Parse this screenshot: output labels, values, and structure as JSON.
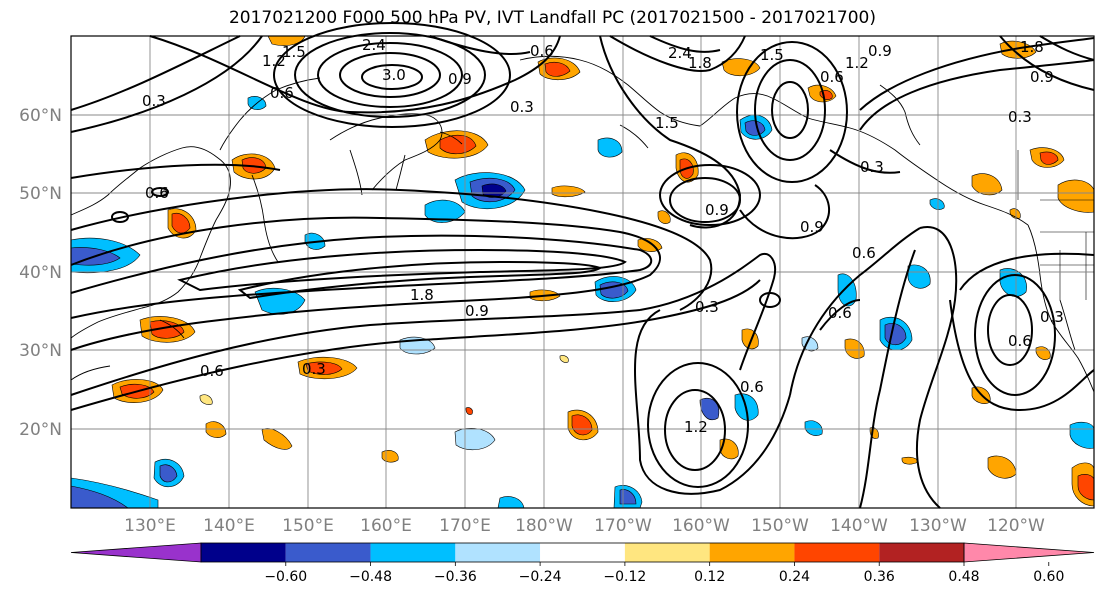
{
  "title": "2017021200 F000 500 hPa PV, IVT Landfall PC (2017021500 - 2017021700)",
  "map": {
    "lat_labels": [
      "60°N",
      "50°N",
      "40°N",
      "30°N",
      "20°N"
    ],
    "lon_labels": [
      "130°E",
      "140°E",
      "150°E",
      "160°E",
      "170°E",
      "180°W",
      "170°W",
      "160°W",
      "150°W",
      "140°W",
      "130°W",
      "120°W"
    ],
    "contour_labels": [
      "0.3",
      "0.6",
      "1.5",
      "2.4",
      "3.0",
      "1.2",
      "0.9",
      "0.6",
      "0.3",
      "2.4",
      "1.8",
      "1.5",
      "0.9",
      "1.2",
      "1.8",
      "0.9",
      "0.3",
      "0.6",
      "0.3",
      "1.5",
      "1.8",
      "0.9",
      "0.6",
      "0.3",
      "0.3",
      "0.6",
      "0.9",
      "0.6",
      "0.6",
      "1.2",
      "0.6",
      "0.3",
      "0.6",
      "0.9"
    ]
  },
  "colorbar": {
    "ticks": [
      "−0.60",
      "−0.48",
      "−0.36",
      "−0.24",
      "−0.12",
      "0.12",
      "0.24",
      "0.36",
      "0.48",
      "0.60"
    ],
    "colors": [
      "#9932cc",
      "#00008b",
      "#3a5bcc",
      "#00bfff",
      "#b0e2ff",
      "#ffffff",
      "#ffe680",
      "#ffa500",
      "#ff4500",
      "#b22222",
      "#ff88aa"
    ]
  }
}
